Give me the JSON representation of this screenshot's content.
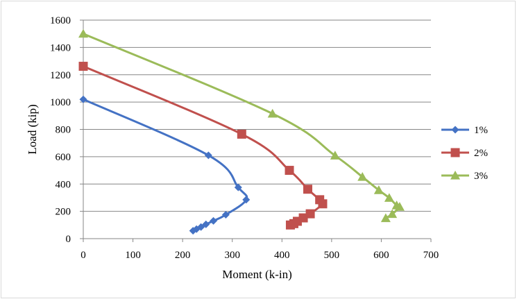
{
  "chart_data": {
    "type": "line",
    "title": "",
    "xlabel": "Moment (k-in)",
    "ylabel": "Load (kip)",
    "xlim": [
      0,
      700
    ],
    "ylim": [
      0,
      1600
    ],
    "xticks": [
      0,
      100,
      200,
      300,
      400,
      500,
      600,
      700
    ],
    "yticks": [
      0,
      200,
      400,
      600,
      800,
      1000,
      1200,
      1400,
      1600
    ],
    "grid": "horizontal",
    "legend_position": "right",
    "series": [
      {
        "name": "1%",
        "color": "#4472C4",
        "marker": "diamond",
        "points": [
          [
            0,
            1020
          ],
          [
            252,
            610
          ],
          [
            312,
            375
          ],
          [
            328,
            285
          ],
          [
            287,
            175
          ],
          [
            262,
            130
          ],
          [
            247,
            105
          ],
          [
            237,
            85
          ],
          [
            228,
            70
          ],
          [
            221,
            58
          ]
        ]
      },
      {
        "name": "2%",
        "color": "#C0504D",
        "marker": "square",
        "points": [
          [
            0,
            1262
          ],
          [
            319,
            765
          ],
          [
            415,
            500
          ],
          [
            452,
            362
          ],
          [
            476,
            285
          ],
          [
            482,
            255
          ],
          [
            457,
            182
          ],
          [
            443,
            152
          ],
          [
            431,
            127
          ],
          [
            424,
            110
          ],
          [
            417,
            100
          ]
        ]
      },
      {
        "name": "3%",
        "color": "#9BBB59",
        "marker": "triangle",
        "points": [
          [
            0,
            1500
          ],
          [
            381,
            915
          ],
          [
            507,
            608
          ],
          [
            562,
            452
          ],
          [
            595,
            355
          ],
          [
            616,
            298
          ],
          [
            631,
            243
          ],
          [
            637,
            233
          ],
          [
            622,
            180
          ],
          [
            609,
            150
          ]
        ]
      }
    ]
  }
}
